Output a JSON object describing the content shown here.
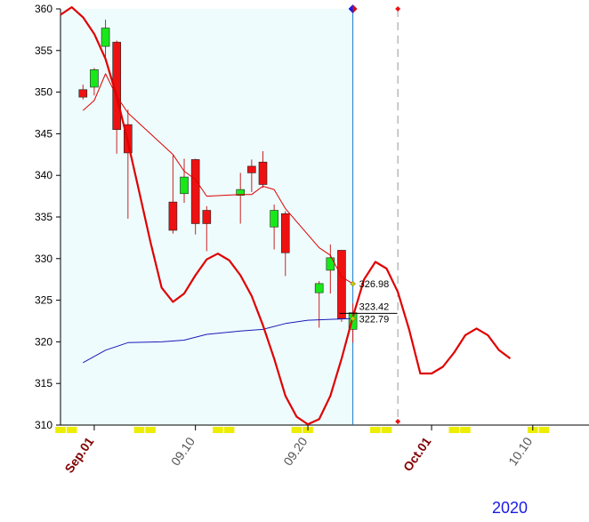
{
  "chart_data": {
    "type": "candlestick",
    "title": "",
    "xlabel": "",
    "ylabel": "",
    "year_label": "2020",
    "ylim": [
      310,
      360
    ],
    "y_ticks": [
      310,
      315,
      320,
      325,
      330,
      335,
      340,
      345,
      350,
      355,
      360
    ],
    "x_range": [
      "2020-08-29",
      "2020-10-15"
    ],
    "x_labels": [
      {
        "text": "Sep.01",
        "date": "2020-09-01",
        "bold": true,
        "color": "#800000"
      },
      {
        "text": "09.10",
        "date": "2020-09-10",
        "bold": false,
        "color": "#555555"
      },
      {
        "text": "09.20",
        "date": "2020-09-20",
        "bold": false,
        "color": "#555555"
      },
      {
        "text": "Oct.01",
        "date": "2020-10-01",
        "bold": true,
        "color": "#800000"
      },
      {
        "text": "10.10",
        "date": "2020-10-10",
        "bold": false,
        "color": "#555555"
      }
    ],
    "weekend_markers": [
      "2020-08-29",
      "2020-08-30",
      "2020-09-05",
      "2020-09-06",
      "2020-09-12",
      "2020-09-13",
      "2020-09-19",
      "2020-09-20",
      "2020-09-26",
      "2020-09-27",
      "2020-10-03",
      "2020-10-04",
      "2020-10-10",
      "2020-10-11"
    ],
    "shaded_until": "2020-09-24",
    "current_date": "2020-09-24",
    "projection_date": "2020-09-28",
    "candles": [
      {
        "date": "2020-08-31",
        "open": 350.3,
        "high": 350.9,
        "low": 349.1,
        "close": 349.4
      },
      {
        "date": "2020-09-01",
        "open": 350.6,
        "high": 352.9,
        "low": 349.6,
        "close": 352.7
      },
      {
        "date": "2020-09-02",
        "open": 355.5,
        "high": 358.7,
        "low": 353.7,
        "close": 357.7
      },
      {
        "date": "2020-09-03",
        "open": 356.0,
        "high": 356.2,
        "low": 342.6,
        "close": 345.5
      },
      {
        "date": "2020-09-04",
        "open": 346.1,
        "high": 347.9,
        "low": 334.8,
        "close": 342.7
      },
      {
        "date": "2020-09-08",
        "open": 336.8,
        "high": 342.4,
        "low": 333.0,
        "close": 333.4
      },
      {
        "date": "2020-09-09",
        "open": 337.8,
        "high": 342.0,
        "low": 336.7,
        "close": 339.8
      },
      {
        "date": "2020-09-10",
        "open": 341.9,
        "high": 342.0,
        "low": 332.9,
        "close": 334.2
      },
      {
        "date": "2020-09-11",
        "open": 335.8,
        "high": 336.3,
        "low": 330.9,
        "close": 334.2
      },
      {
        "date": "2020-09-14",
        "open": 337.6,
        "high": 340.3,
        "low": 334.2,
        "close": 338.3
      },
      {
        "date": "2020-09-15",
        "open": 341.1,
        "high": 341.9,
        "low": 338.0,
        "close": 340.3
      },
      {
        "date": "2020-09-16",
        "open": 341.6,
        "high": 342.9,
        "low": 338.5,
        "close": 338.9
      },
      {
        "date": "2020-09-17",
        "open": 333.8,
        "high": 336.5,
        "low": 331.1,
        "close": 335.8
      },
      {
        "date": "2020-09-18",
        "open": 335.4,
        "high": 335.7,
        "low": 327.9,
        "close": 330.7
      },
      {
        "date": "2020-09-21",
        "open": 325.9,
        "high": 327.3,
        "low": 321.7,
        "close": 327.0
      },
      {
        "date": "2020-09-22",
        "open": 328.6,
        "high": 331.7,
        "low": 325.8,
        "close": 330.1
      },
      {
        "date": "2020-09-23",
        "open": 331.0,
        "high": 331.0,
        "low": 322.4,
        "close": 322.8
      },
      {
        "date": "2020-09-24",
        "open": 321.5,
        "high": 324.6,
        "low": 319.9,
        "close": 323.5
      }
    ],
    "series": [
      {
        "kind": "moving_average",
        "color": "#e00000",
        "points": [
          [
            "2020-08-31",
            347.8
          ],
          [
            "2020-09-01",
            349.0
          ],
          [
            "2020-09-02",
            352.2
          ],
          [
            "2020-09-03",
            349.5
          ],
          [
            "2020-09-04",
            347.5
          ],
          [
            "2020-09-08",
            342.5
          ],
          [
            "2020-09-09",
            340.5
          ],
          [
            "2020-09-10",
            339.5
          ],
          [
            "2020-09-11",
            337.5
          ],
          [
            "2020-09-14",
            337.7
          ],
          [
            "2020-09-15",
            337.7
          ],
          [
            "2020-09-16",
            338.7
          ],
          [
            "2020-09-17",
            338.3
          ],
          [
            "2020-09-18",
            336.0
          ],
          [
            "2020-09-21",
            331.3
          ],
          [
            "2020-09-22",
            330.4
          ],
          [
            "2020-09-23",
            327.8
          ],
          [
            "2020-09-24",
            326.98
          ]
        ]
      },
      {
        "kind": "moving_average",
        "color": "#1a1ab4",
        "points": [
          [
            "2020-08-31",
            317.5
          ],
          [
            "2020-09-02",
            319.0
          ],
          [
            "2020-09-04",
            319.9
          ],
          [
            "2020-09-07",
            320.0
          ],
          [
            "2020-09-09",
            320.2
          ],
          [
            "2020-09-11",
            320.9
          ],
          [
            "2020-09-14",
            321.3
          ],
          [
            "2020-09-16",
            321.5
          ],
          [
            "2020-09-18",
            322.2
          ],
          [
            "2020-09-20",
            322.6
          ],
          [
            "2020-09-22",
            322.7
          ],
          [
            "2020-09-24",
            322.79
          ]
        ]
      },
      {
        "kind": "cycle_projection",
        "color": "#e00000",
        "points": [
          [
            "2020-08-29",
            359.3
          ],
          [
            "2020-08-30",
            360.2
          ],
          [
            "2020-08-31",
            359.0
          ],
          [
            "2020-09-01",
            357.0
          ],
          [
            "2020-09-02",
            354.0
          ],
          [
            "2020-09-03",
            349.5
          ],
          [
            "2020-09-04",
            344.0
          ],
          [
            "2020-09-05",
            338.0
          ],
          [
            "2020-09-06",
            332.0
          ],
          [
            "2020-09-07",
            326.5
          ],
          [
            "2020-09-08",
            324.8
          ],
          [
            "2020-09-09",
            325.8
          ],
          [
            "2020-09-10",
            328.0
          ],
          [
            "2020-09-11",
            329.9
          ],
          [
            "2020-09-12",
            330.6
          ],
          [
            "2020-09-13",
            329.8
          ],
          [
            "2020-09-14",
            328.0
          ],
          [
            "2020-09-15",
            325.5
          ],
          [
            "2020-09-16",
            322.0
          ],
          [
            "2020-09-17",
            318.0
          ],
          [
            "2020-09-18",
            313.5
          ],
          [
            "2020-09-19",
            311.0
          ],
          [
            "2020-09-20",
            310.1
          ],
          [
            "2020-09-21",
            310.7
          ],
          [
            "2020-09-22",
            313.5
          ],
          [
            "2020-09-23",
            318.0
          ],
          [
            "2020-09-24",
            323.0
          ],
          [
            "2020-09-25",
            327.5
          ],
          [
            "2020-09-26",
            329.6
          ],
          [
            "2020-09-27",
            328.8
          ],
          [
            "2020-09-28",
            326.0
          ],
          [
            "2020-09-29",
            321.5
          ],
          [
            "2020-09-30",
            316.2
          ],
          [
            "2020-10-01",
            316.2
          ],
          [
            "2020-10-02",
            317.0
          ],
          [
            "2020-10-03",
            318.7
          ],
          [
            "2020-10-04",
            320.8
          ],
          [
            "2020-10-05",
            321.6
          ],
          [
            "2020-10-06",
            320.8
          ],
          [
            "2020-10-07",
            319.0
          ],
          [
            "2020-10-08",
            318.0
          ]
        ]
      }
    ],
    "annotations": [
      {
        "text": "326.98",
        "date": "2020-09-24",
        "value": 326.98,
        "marker_color": "#c8c800"
      },
      {
        "text": "323.42",
        "date": "2020-09-24",
        "value": 323.42,
        "marker_color": null
      },
      {
        "text": "322.79",
        "date": "2020-09-24",
        "value": 322.79,
        "marker_color": "#c8c800"
      }
    ],
    "grid": false,
    "colors": {
      "up": "#18e81a",
      "down": "#ee1111",
      "shade": "#eefcfe",
      "current_line": "#1a7ad0",
      "projection_line": "#999999",
      "weekend_marker": "#eded00"
    }
  }
}
